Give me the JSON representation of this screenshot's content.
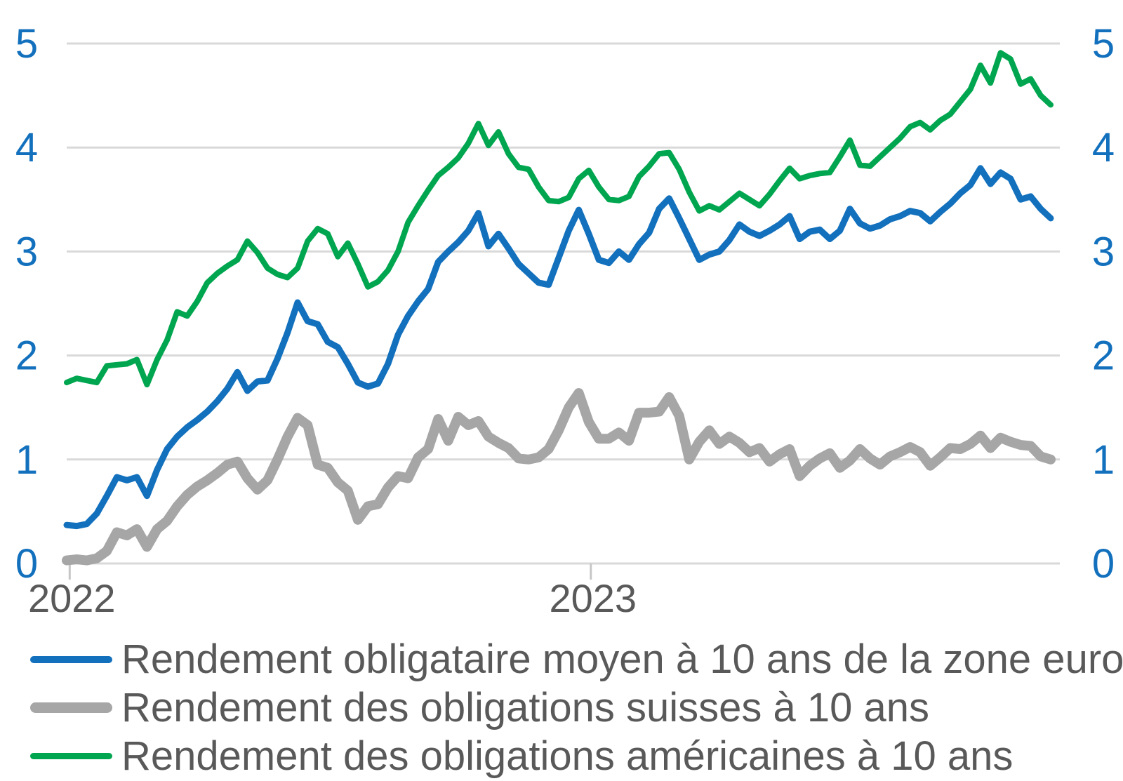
{
  "chart_data": {
    "type": "line",
    "title": "",
    "grid": true,
    "legend_position": "bottom-left",
    "x_axis": {
      "unit": "weeks",
      "tick_labels": [
        "2022",
        "2023"
      ],
      "tick_indices": [
        0.3,
        52.2
      ]
    },
    "y_axis": {
      "min": 0,
      "max": 5,
      "ticks": [
        "0",
        "1",
        "2",
        "3",
        "4",
        "5"
      ],
      "sides": [
        "left",
        "right"
      ]
    },
    "series": [
      {
        "name": "Rendement obligataire moyen à 10 ans de la zone euro",
        "color": "#1270BD",
        "width": 9,
        "values": [
          0.37,
          0.36,
          0.38,
          0.48,
          0.65,
          0.83,
          0.8,
          0.83,
          0.65,
          0.9,
          1.1,
          1.22,
          1.31,
          1.38,
          1.46,
          1.56,
          1.68,
          1.84,
          1.66,
          1.75,
          1.76,
          1.97,
          2.22,
          2.51,
          2.33,
          2.3,
          2.13,
          2.08,
          1.92,
          1.74,
          1.7,
          1.73,
          1.92,
          2.2,
          2.38,
          2.52,
          2.64,
          2.9,
          3.0,
          3.09,
          3.2,
          3.37,
          3.05,
          3.17,
          3.03,
          2.88,
          2.79,
          2.7,
          2.68,
          2.94,
          3.2,
          3.4,
          3.17,
          2.92,
          2.89,
          3.0,
          2.92,
          3.07,
          3.18,
          3.41,
          3.51,
          3.32,
          3.12,
          2.92,
          2.97,
          3.0,
          3.11,
          3.26,
          3.19,
          3.15,
          3.2,
          3.26,
          3.34,
          3.12,
          3.19,
          3.21,
          3.12,
          3.2,
          3.41,
          3.27,
          3.22,
          3.25,
          3.31,
          3.34,
          3.39,
          3.37,
          3.29,
          3.38,
          3.46,
          3.56,
          3.64,
          3.8,
          3.65,
          3.76,
          3.7,
          3.5,
          3.53,
          3.41,
          3.32
        ]
      },
      {
        "name": "Rendement des obligations suisses à 10 ans",
        "color": "#A6A6A6",
        "width": 14,
        "values": [
          0.03,
          0.04,
          0.03,
          0.05,
          0.12,
          0.3,
          0.27,
          0.33,
          0.16,
          0.33,
          0.41,
          0.55,
          0.66,
          0.74,
          0.8,
          0.87,
          0.95,
          0.98,
          0.82,
          0.71,
          0.8,
          1.0,
          1.22,
          1.4,
          1.33,
          0.95,
          0.92,
          0.78,
          0.7,
          0.42,
          0.55,
          0.57,
          0.73,
          0.84,
          0.82,
          1.02,
          1.1,
          1.39,
          1.18,
          1.41,
          1.33,
          1.37,
          1.22,
          1.16,
          1.11,
          1.01,
          1.0,
          1.02,
          1.1,
          1.28,
          1.5,
          1.64,
          1.36,
          1.2,
          1.2,
          1.26,
          1.18,
          1.45,
          1.45,
          1.46,
          1.6,
          1.42,
          1.0,
          1.17,
          1.28,
          1.15,
          1.22,
          1.16,
          1.07,
          1.11,
          0.98,
          1.05,
          1.1,
          0.84,
          0.94,
          1.01,
          1.06,
          0.92,
          0.99,
          1.1,
          1.01,
          0.95,
          1.03,
          1.07,
          1.12,
          1.07,
          0.94,
          1.02,
          1.11,
          1.1,
          1.15,
          1.23,
          1.11,
          1.21,
          1.17,
          1.14,
          1.13,
          1.03,
          1.0
        ]
      },
      {
        "name": "Rendement des obligations américaines à 10 ans",
        "color": "#00A64F",
        "width": 8,
        "values": [
          1.74,
          1.78,
          1.76,
          1.74,
          1.9,
          1.91,
          1.92,
          1.96,
          1.72,
          1.96,
          2.15,
          2.42,
          2.38,
          2.52,
          2.7,
          2.79,
          2.86,
          2.92,
          3.1,
          2.99,
          2.84,
          2.78,
          2.75,
          2.84,
          3.1,
          3.22,
          3.17,
          2.95,
          3.08,
          2.88,
          2.66,
          2.71,
          2.82,
          3.0,
          3.28,
          3.44,
          3.59,
          3.73,
          3.81,
          3.9,
          4.04,
          4.23,
          4.02,
          4.15,
          3.94,
          3.81,
          3.79,
          3.62,
          3.49,
          3.48,
          3.52,
          3.7,
          3.78,
          3.62,
          3.5,
          3.49,
          3.53,
          3.72,
          3.82,
          3.94,
          3.95,
          3.79,
          3.57,
          3.39,
          3.44,
          3.4,
          3.48,
          3.56,
          3.5,
          3.44,
          3.55,
          3.68,
          3.8,
          3.7,
          3.73,
          3.75,
          3.76,
          3.91,
          4.07,
          3.83,
          3.82,
          3.91,
          4.0,
          4.09,
          4.2,
          4.24,
          4.17,
          4.26,
          4.32,
          4.44,
          4.56,
          4.79,
          4.62,
          4.91,
          4.85,
          4.61,
          4.66,
          4.5,
          4.41
        ]
      }
    ]
  },
  "colors": {
    "background": "#FFFFFF",
    "gridline": "#D9D9D9",
    "tick": "#C6C6C6",
    "axis_label": "#1270BD",
    "text": "#595959"
  }
}
